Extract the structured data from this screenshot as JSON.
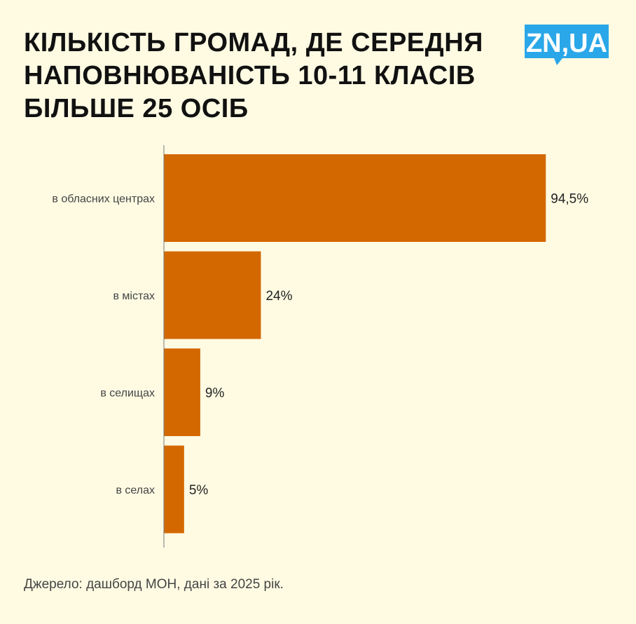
{
  "title_lines": [
    "КІЛЬКІСТЬ ГРОМАД, ДЕ СЕРЕДНЯ",
    "НАПОВНЮВАНІСТЬ 10-11 КЛАСІВ",
    "БІЛЬШЕ 25 ОСІБ"
  ],
  "logo": {
    "text": "ZN,UA",
    "color": "#2aa7e8"
  },
  "source": "Джерело: дашборд МОН, дані за 2025 рік.",
  "colors": {
    "bar": "#d46800",
    "background": "#fffbe3"
  },
  "chart_data": {
    "type": "bar",
    "orientation": "horizontal",
    "categories": [
      "в обласних центрах",
      "в містах",
      "в селищах",
      "в селах"
    ],
    "values": [
      94.5,
      24,
      9,
      5
    ],
    "value_labels": [
      "94,5%",
      "24%",
      "9%",
      "5%"
    ],
    "xlim": [
      0,
      100
    ],
    "grid": false,
    "legend": "none"
  }
}
